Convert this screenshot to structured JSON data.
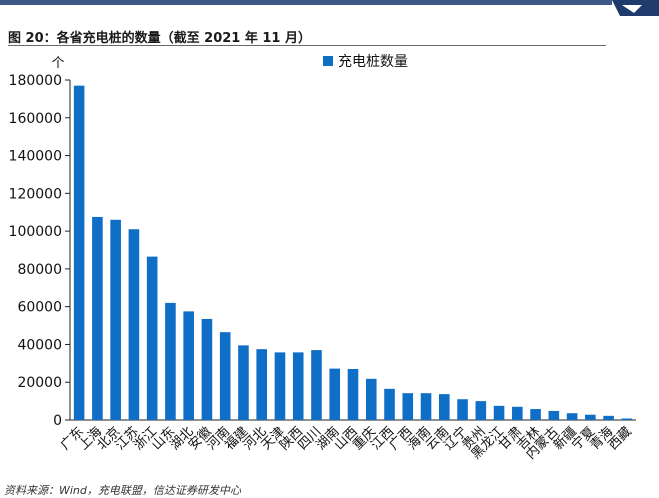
{
  "figure": {
    "title": "图 20：各省充电桩的数量（截至 2021 年 11 月）",
    "source": "资料来源：Wind，充电联盟，信达证券研发中心"
  },
  "colors": {
    "header_bar": "#3d5a86",
    "bar": "#0f6fc6"
  },
  "chart_data": {
    "type": "bar",
    "title": "",
    "xlabel": "",
    "ylabel": "个",
    "ylim": [
      0,
      180000
    ],
    "yticks": [
      0,
      20000,
      40000,
      60000,
      80000,
      100000,
      120000,
      140000,
      160000,
      180000
    ],
    "legend_position": "top-right",
    "grid": false,
    "categories": [
      "广东",
      "上海",
      "北京",
      "江苏",
      "浙江",
      "山东",
      "湖北",
      "安徽",
      "河南",
      "福建",
      "河北",
      "天津",
      "陕西",
      "四川",
      "湖南",
      "山西",
      "重庆",
      "江西",
      "广西",
      "海南",
      "云南",
      "辽宁",
      "贵州",
      "黑龙江",
      "甘肃",
      "吉林",
      "内蒙古",
      "新疆",
      "宁夏",
      "青海",
      "西藏"
    ],
    "series": [
      {
        "name": "充电桩数量",
        "values": [
          177000,
          107500,
          106000,
          101000,
          86500,
          62000,
          57500,
          53500,
          46500,
          39500,
          37500,
          35800,
          35800,
          37000,
          27200,
          27000,
          21800,
          16500,
          14200,
          14200,
          13700,
          11000,
          10000,
          7500,
          7000,
          5800,
          4800,
          3600,
          2800,
          2200,
          800
        ]
      }
    ]
  }
}
